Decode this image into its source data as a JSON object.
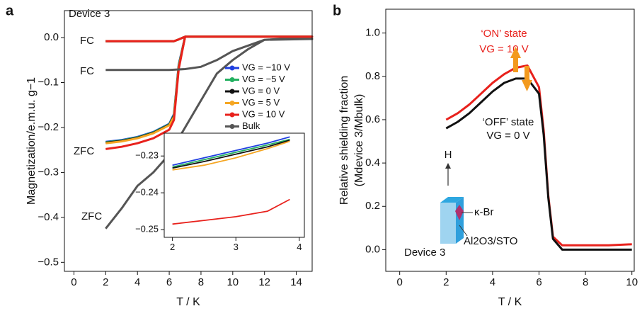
{
  "chart_data": [
    {
      "type": "line",
      "panel_label": "a",
      "x_label": "T / K",
      "y_label": "Magnetization/e.m.u. g−1",
      "annotations": [
        "Device 3",
        "FC",
        "FC",
        "ZFC",
        "ZFC"
      ],
      "xlim": [
        -0.6,
        15
      ],
      "ylim": [
        -0.52,
        0.06
      ],
      "xticks": [
        0,
        2,
        4,
        6,
        8,
        10,
        12,
        14
      ],
      "yticks": [
        {
          "value": -0.5,
          "label": "−0.5"
        },
        {
          "value": -0.4,
          "label": "−0.4"
        },
        {
          "value": -0.3,
          "label": "−0.3"
        },
        {
          "value": -0.2,
          "label": "−0.2"
        },
        {
          "value": -0.1,
          "label": "−0.1"
        },
        {
          "value": 0,
          "label": "0.0"
        }
      ],
      "series": [
        {
          "name": "VG = −10 V",
          "color": "#1f3fe0",
          "x": [
            2,
            3,
            4,
            5,
            6,
            6.3,
            6.6,
            7,
            10,
            15,
            10,
            7,
            6.6,
            6.3,
            4,
            2
          ],
          "values": [
            -0.232,
            -0.228,
            -0.221,
            -0.21,
            -0.192,
            -0.17,
            -0.06,
            0.002,
            0.002,
            0.002,
            0.002,
            0.002,
            -0.004,
            -0.008,
            -0.008,
            -0.008
          ]
        },
        {
          "name": "VG = −5 V",
          "color": "#22b060",
          "x": [
            2,
            3,
            4,
            5,
            6,
            6.3,
            6.6,
            7,
            10,
            15,
            10,
            7,
            6.6,
            6.3,
            4,
            2
          ],
          "values": [
            -0.233,
            -0.229,
            -0.222,
            -0.211,
            -0.193,
            -0.172,
            -0.062,
            0.002,
            0.002,
            0.002,
            0.002,
            0.002,
            -0.004,
            -0.008,
            -0.008,
            -0.008
          ]
        },
        {
          "name": "VG = 0 V",
          "color": "#111111",
          "x": [
            2,
            3,
            4,
            5,
            6,
            6.3,
            6.6,
            7,
            10,
            15,
            10,
            7,
            6.6,
            6.3,
            4,
            2
          ],
          "values": [
            -0.234,
            -0.23,
            -0.223,
            -0.212,
            -0.194,
            -0.174,
            -0.064,
            0.002,
            0.002,
            0.002,
            0.002,
            0.002,
            -0.004,
            -0.008,
            -0.008,
            -0.008
          ]
        },
        {
          "name": "VG = 5 V",
          "color": "#f5a623",
          "x": [
            2,
            3,
            4,
            5,
            6,
            6.3,
            6.6,
            7,
            10,
            15,
            10,
            7,
            6.6,
            6.3,
            4,
            2
          ],
          "values": [
            -0.235,
            -0.231,
            -0.224,
            -0.213,
            -0.195,
            -0.176,
            -0.066,
            0.002,
            0.002,
            0.002,
            0.002,
            0.002,
            -0.004,
            -0.008,
            -0.008,
            -0.008
          ]
        },
        {
          "name": "VG = 10 V",
          "color": "#e8211c",
          "x": [
            2,
            3,
            4,
            5,
            6,
            6.3,
            6.6,
            7,
            10,
            15,
            10,
            7,
            6.6,
            6.3,
            4,
            2
          ],
          "values": [
            -0.248,
            -0.243,
            -0.235,
            -0.224,
            -0.205,
            -0.183,
            -0.07,
            0.002,
            0.002,
            0.002,
            0.002,
            0.002,
            -0.004,
            -0.008,
            -0.008,
            -0.008
          ]
        },
        {
          "name": "Bulk",
          "color": "#555555",
          "x": [
            2,
            3,
            4,
            5,
            6,
            7,
            8,
            9,
            10,
            11,
            12,
            13,
            14,
            15,
            12,
            10,
            9,
            8,
            7,
            6,
            4,
            2
          ],
          "values": [
            -0.425,
            -0.38,
            -0.33,
            -0.3,
            -0.26,
            -0.2,
            -0.14,
            -0.08,
            -0.05,
            -0.025,
            -0.005,
            -0.003,
            -0.003,
            -0.003,
            -0.005,
            -0.03,
            -0.05,
            -0.065,
            -0.07,
            -0.072,
            -0.072,
            -0.072
          ]
        }
      ]
    },
    {
      "type": "line",
      "xlim": [
        1.87,
        4.08
      ],
      "ylim": [
        -0.2521,
        -0.2238
      ],
      "xticks": [
        2,
        3,
        4
      ],
      "yticks": [
        {
          "value": -0.23,
          "label": "−0.23"
        },
        {
          "value": -0.24,
          "label": "−0.24"
        },
        {
          "value": -0.25,
          "label": "−0.25"
        }
      ],
      "x": [
        2,
        2.5,
        3,
        3.5,
        3.85
      ],
      "series": [
        {
          "color": "#1f3fe0",
          "values": [
            -0.2325,
            -0.2305,
            -0.2285,
            -0.2265,
            -0.2248
          ]
        },
        {
          "color": "#22b060",
          "values": [
            -0.233,
            -0.231,
            -0.229,
            -0.227,
            -0.2255
          ]
        },
        {
          "color": "#111111",
          "values": [
            -0.2333,
            -0.2315,
            -0.2295,
            -0.2275,
            -0.2257
          ]
        },
        {
          "color": "#f5a623",
          "values": [
            -0.2338,
            -0.2325,
            -0.2305,
            -0.228,
            -0.226
          ]
        },
        {
          "color": "#e8211c",
          "values": [
            -0.2485,
            -0.2475,
            -0.2465,
            -0.245,
            -0.2418
          ]
        }
      ]
    },
    {
      "type": "line",
      "panel_label": "b",
      "x_label": "T / K",
      "y_label": [
        "Relative shielding fraction",
        "(Mdevice 3/Mbulk)"
      ],
      "annotations": [
        "‘ON’ state",
        "VG = 10 V",
        "‘OFF’ state",
        "VG = 0 V",
        "H",
        "κ-Br",
        "Al2O3/STO",
        "Device 3"
      ],
      "xlim": [
        -0.6,
        10.1
      ],
      "ylim": [
        -0.1,
        1.11
      ],
      "xticks": [
        0,
        2,
        4,
        6,
        8,
        10
      ],
      "yticks": [
        {
          "value": 0,
          "label": "0.0"
        },
        {
          "value": 0.2,
          "label": "0.2"
        },
        {
          "value": 0.4,
          "label": "0.4"
        },
        {
          "value": 0.6,
          "label": "0.6"
        },
        {
          "value": 0.8,
          "label": "0.8"
        },
        {
          "value": 1,
          "label": "1.0"
        }
      ],
      "x": [
        2,
        2.5,
        3,
        3.5,
        4,
        4.5,
        5,
        5.5,
        6,
        6.2,
        6.4,
        6.6,
        7,
        8,
        9,
        10
      ],
      "series": [
        {
          "color": "#e8211c",
          "values": [
            0.6,
            0.63,
            0.67,
            0.72,
            0.77,
            0.81,
            0.84,
            0.85,
            0.75,
            0.55,
            0.25,
            0.06,
            0.02,
            0.02,
            0.02,
            0.025
          ]
        },
        {
          "color": "#111111",
          "values": [
            0.56,
            0.59,
            0.63,
            0.68,
            0.73,
            0.77,
            0.79,
            0.79,
            0.72,
            0.53,
            0.24,
            0.05,
            0,
            0,
            0,
            0
          ]
        }
      ]
    }
  ]
}
